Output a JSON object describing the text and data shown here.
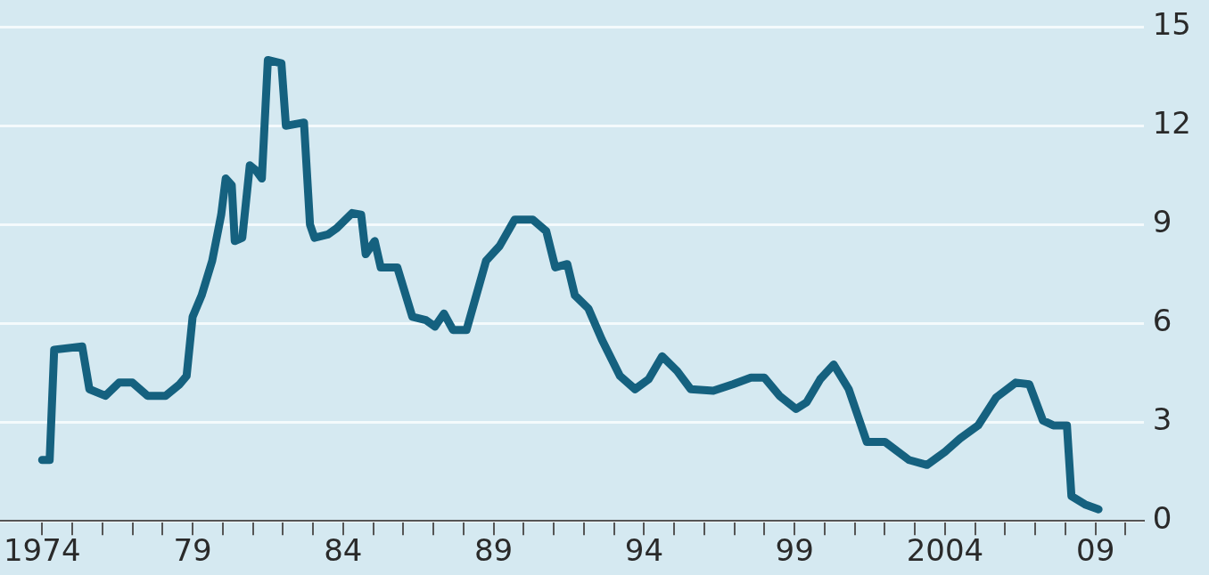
{
  "chart_data": {
    "type": "line",
    "x": [
      1974.0,
      1974.25,
      1974.4,
      1975.33,
      1975.57,
      1976.1,
      1976.56,
      1977.0,
      1977.5,
      1978.1,
      1978.57,
      1978.8,
      1979.0,
      1979.3,
      1979.65,
      1979.95,
      1980.1,
      1980.3,
      1980.4,
      1980.65,
      1980.9,
      1981.1,
      1981.3,
      1981.5,
      1981.95,
      1982.1,
      1982.7,
      1982.9,
      1983.05,
      1983.5,
      1983.8,
      1984.3,
      1984.6,
      1984.75,
      1985.05,
      1985.25,
      1985.8,
      1986.3,
      1986.75,
      1987.05,
      1987.35,
      1987.65,
      1988.1,
      1988.75,
      1989.2,
      1989.7,
      1990.3,
      1990.75,
      1991.05,
      1991.45,
      1991.7,
      1992.15,
      1992.6,
      1993.2,
      1993.7,
      1994.15,
      1994.6,
      1995.1,
      1995.55,
      1996.3,
      1996.95,
      1997.55,
      1998.0,
      1998.5,
      1999.05,
      1999.4,
      1999.85,
      2000.3,
      2000.8,
      2001.1,
      2001.4,
      2002.0,
      2002.8,
      2003.4,
      2004.0,
      2004.5,
      2005.1,
      2005.7,
      2006.35,
      2006.8,
      2007.25,
      2007.6,
      2008.05,
      2008.2,
      2008.65,
      2009.1
    ],
    "series": [
      {
        "color": "#15617f",
        "values": [
          1.85,
          1.85,
          5.2,
          5.3,
          4.0,
          3.8,
          4.2,
          4.2,
          3.8,
          3.8,
          4.15,
          4.4,
          6.2,
          6.85,
          7.9,
          9.3,
          10.4,
          10.2,
          8.5,
          8.6,
          10.8,
          10.65,
          10.4,
          14.0,
          13.9,
          12.0,
          12.1,
          9.0,
          8.6,
          8.7,
          8.9,
          9.35,
          9.3,
          8.1,
          8.5,
          7.7,
          7.7,
          6.2,
          6.1,
          5.9,
          6.3,
          5.8,
          5.8,
          7.9,
          8.35,
          9.15,
          9.15,
          8.8,
          7.7,
          7.8,
          6.85,
          6.45,
          5.5,
          4.4,
          4.0,
          4.3,
          5.0,
          4.55,
          4.0,
          3.95,
          4.15,
          4.35,
          4.35,
          3.8,
          3.4,
          3.6,
          4.3,
          4.75,
          4.0,
          3.2,
          2.4,
          2.4,
          1.85,
          1.7,
          2.1,
          2.5,
          2.9,
          3.75,
          4.2,
          4.15,
          3.05,
          2.9,
          2.9,
          0.75,
          0.5,
          0.35
        ]
      }
    ],
    "xlim": [
      1972.6,
      2010.6
    ],
    "xticks": [
      {
        "value": 1974,
        "label": "1974"
      },
      {
        "value": 1975,
        "label": null
      },
      {
        "value": 1976,
        "label": null
      },
      {
        "value": 1977,
        "label": null
      },
      {
        "value": 1978,
        "label": null
      },
      {
        "value": 1979,
        "label": "79"
      },
      {
        "value": 1980,
        "label": null
      },
      {
        "value": 1981,
        "label": null
      },
      {
        "value": 1982,
        "label": null
      },
      {
        "value": 1983,
        "label": null
      },
      {
        "value": 1984,
        "label": "84"
      },
      {
        "value": 1985,
        "label": null
      },
      {
        "value": 1986,
        "label": null
      },
      {
        "value": 1987,
        "label": null
      },
      {
        "value": 1988,
        "label": null
      },
      {
        "value": 1989,
        "label": "89"
      },
      {
        "value": 1990,
        "label": null
      },
      {
        "value": 1991,
        "label": null
      },
      {
        "value": 1992,
        "label": null
      },
      {
        "value": 1993,
        "label": null
      },
      {
        "value": 1994,
        "label": "94"
      },
      {
        "value": 1995,
        "label": null
      },
      {
        "value": 1996,
        "label": null
      },
      {
        "value": 1997,
        "label": null
      },
      {
        "value": 1998,
        "label": null
      },
      {
        "value": 1999,
        "label": "99"
      },
      {
        "value": 2000,
        "label": null
      },
      {
        "value": 2001,
        "label": null
      },
      {
        "value": 2002,
        "label": null
      },
      {
        "value": 2003,
        "label": null
      },
      {
        "value": 2004,
        "label": "2004"
      },
      {
        "value": 2005,
        "label": null
      },
      {
        "value": 2006,
        "label": null
      },
      {
        "value": 2007,
        "label": null
      },
      {
        "value": 2008,
        "label": null
      },
      {
        "value": 2009,
        "label": "09"
      },
      {
        "value": 2010,
        "label": null
      }
    ],
    "ylim": [
      0,
      15
    ],
    "yticks": [
      0,
      3,
      6,
      9,
      12,
      15
    ],
    "grid": "y",
    "legend": false,
    "marker": "none",
    "line_style": "solid"
  }
}
